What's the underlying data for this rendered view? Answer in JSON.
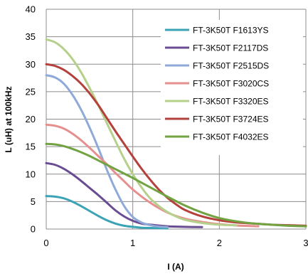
{
  "chart_data": {
    "type": "line",
    "title": "",
    "xlabel": "I (A)",
    "ylabel": "L (uH) at 100kHz",
    "xlim": [
      0,
      3
    ],
    "ylim": [
      0,
      40
    ],
    "xticks": [
      "0",
      "1",
      "2",
      "3"
    ],
    "yticks": [
      "0",
      "5",
      "10",
      "15",
      "20",
      "25",
      "30",
      "35",
      "40"
    ],
    "grid": true,
    "legend_position": "right",
    "series": [
      {
        "name": "FT-3K50T F1613YS",
        "color": "#3aa3b5",
        "x": [
          0,
          0.1,
          0.2,
          0.3,
          0.4,
          0.5,
          0.6,
          0.7,
          0.8,
          0.9,
          1.0,
          1.1,
          1.2,
          1.3,
          1.4
        ],
        "y": [
          6.0,
          5.9,
          5.6,
          5.0,
          4.2,
          3.3,
          2.4,
          1.6,
          1.0,
          0.6,
          0.4,
          0.25,
          0.2,
          0.15,
          0.12
        ]
      },
      {
        "name": "FT-3K50T F2117DS",
        "color": "#6a4c93",
        "x": [
          0,
          0.1,
          0.2,
          0.3,
          0.4,
          0.5,
          0.6,
          0.7,
          0.8,
          0.9,
          1.0,
          1.1,
          1.2,
          1.4,
          1.6,
          1.8
        ],
        "y": [
          12.0,
          11.7,
          11.0,
          10.0,
          8.8,
          7.5,
          6.2,
          4.8,
          3.4,
          2.3,
          1.5,
          1.0,
          0.8,
          0.5,
          0.4,
          0.35
        ]
      },
      {
        "name": "FT-3K50T F2515DS",
        "color": "#8fa9d8",
        "x": [
          0,
          0.1,
          0.2,
          0.3,
          0.4,
          0.5,
          0.6,
          0.7,
          0.8,
          0.9,
          1.0,
          1.1,
          1.2,
          1.3,
          1.4
        ],
        "y": [
          28.0,
          27.6,
          26.5,
          24.5,
          21.8,
          18.5,
          14.8,
          10.8,
          7.2,
          4.2,
          2.2,
          1.2,
          0.7,
          0.45,
          0.35
        ]
      },
      {
        "name": "FT-3K50T F3020CS",
        "color": "#e5908f",
        "x": [
          0,
          0.1,
          0.2,
          0.3,
          0.4,
          0.5,
          0.6,
          0.7,
          0.8,
          0.9,
          1.0,
          1.2,
          1.4,
          1.6,
          1.8,
          2.0,
          2.2,
          2.45
        ],
        "y": [
          19.0,
          18.8,
          18.3,
          17.4,
          16.2,
          14.8,
          13.3,
          11.8,
          10.2,
          8.7,
          7.2,
          4.8,
          3.0,
          1.9,
          1.3,
          0.9,
          0.65,
          0.5
        ]
      },
      {
        "name": "FT-3K50T F3320ES",
        "color": "#b5d08a",
        "x": [
          0,
          0.1,
          0.2,
          0.3,
          0.4,
          0.5,
          0.6,
          0.7,
          0.8,
          0.9,
          1.0,
          1.1,
          1.2,
          1.3,
          1.4,
          1.5,
          1.6,
          1.8,
          2.0,
          2.2
        ],
        "y": [
          34.5,
          34.0,
          32.8,
          31.0,
          28.6,
          25.7,
          22.6,
          19.3,
          16.0,
          12.8,
          10.0,
          7.6,
          5.6,
          4.2,
          3.1,
          2.3,
          1.7,
          1.1,
          0.8,
          0.7
        ]
      },
      {
        "name": "FT-3K50T F3724ES",
        "color": "#b5413d",
        "x": [
          0,
          0.1,
          0.2,
          0.3,
          0.4,
          0.5,
          0.6,
          0.7,
          0.8,
          0.9,
          1.0,
          1.1,
          1.2,
          1.3,
          1.4,
          1.5,
          1.6,
          1.8,
          2.0,
          2.2,
          2.4,
          2.6,
          2.8,
          3.0
        ],
        "y": [
          30.0,
          29.7,
          29.0,
          27.9,
          26.5,
          24.7,
          22.6,
          20.2,
          17.8,
          15.5,
          13.2,
          11.0,
          9.0,
          7.2,
          5.7,
          4.5,
          3.5,
          2.3,
          1.6,
          1.2,
          1.0,
          0.8,
          0.7,
          0.6
        ]
      },
      {
        "name": "FT-3K50T F4032ES",
        "color": "#71a342",
        "x": [
          0,
          0.1,
          0.2,
          0.3,
          0.4,
          0.5,
          0.6,
          0.7,
          0.8,
          0.9,
          1.0,
          1.2,
          1.4,
          1.6,
          1.8,
          2.0,
          2.2,
          2.4,
          2.6,
          2.8,
          3.0
        ],
        "y": [
          15.5,
          15.4,
          15.1,
          14.6,
          14.0,
          13.3,
          12.5,
          11.7,
          10.9,
          10.1,
          9.3,
          7.6,
          5.9,
          4.3,
          3.0,
          2.0,
          1.4,
          1.0,
          0.8,
          0.6,
          0.5
        ]
      }
    ]
  }
}
